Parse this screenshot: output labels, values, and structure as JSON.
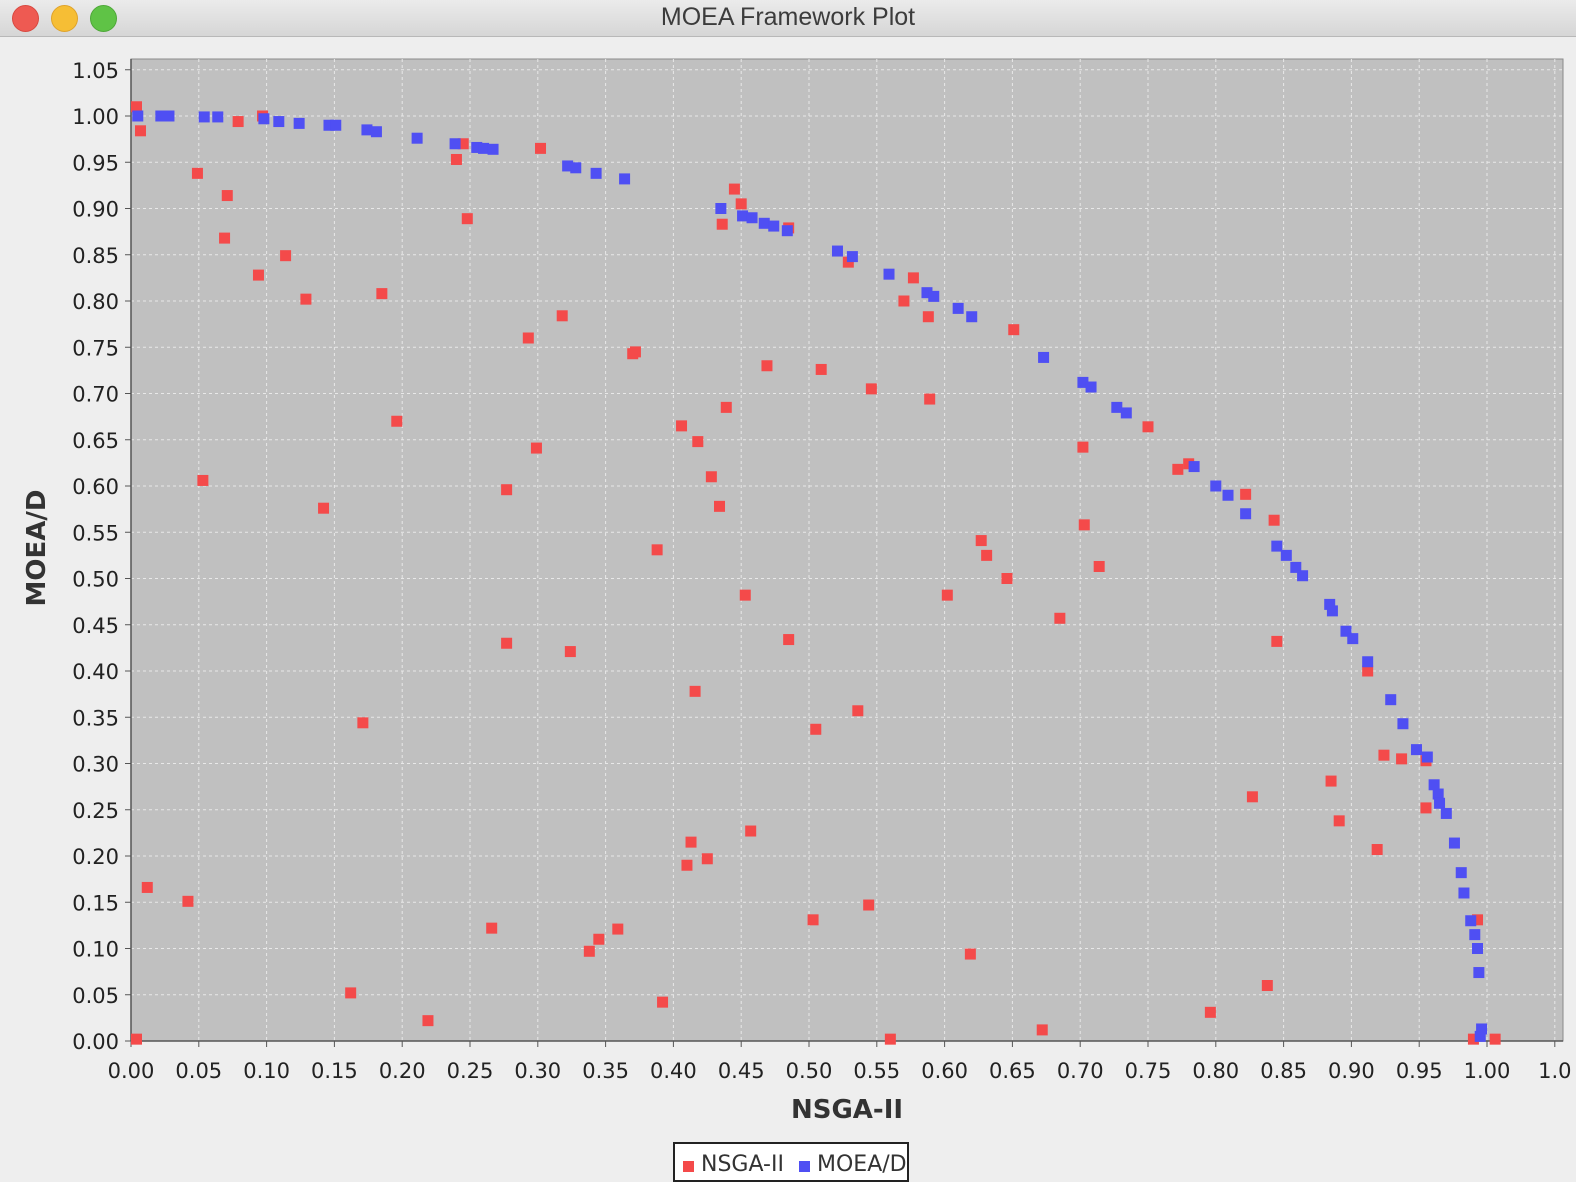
{
  "window": {
    "title": "MOEA Framework Plot"
  },
  "colors": {
    "nsga": "#f44a4a",
    "moead": "#4f4ff3",
    "plot_bg": "#c0c0c0",
    "grid": "#e8e8e8"
  },
  "legend": {
    "items": [
      {
        "label": "NSGA-II"
      },
      {
        "label": "MOEA/D"
      }
    ]
  },
  "chart_data": {
    "type": "scatter",
    "xlabel": "NSGA-II",
    "ylabel": "MOEA/D",
    "xlim": [
      0,
      1.0
    ],
    "ylim": [
      0,
      1.05
    ],
    "grid": true,
    "legend_position": "bottom",
    "xticks": [
      "0.00",
      "0.05",
      "0.10",
      "0.15",
      "0.20",
      "0.25",
      "0.30",
      "0.35",
      "0.40",
      "0.45",
      "0.50",
      "0.55",
      "0.60",
      "0.65",
      "0.70",
      "0.75",
      "0.80",
      "0.85",
      "0.90",
      "0.95",
      "1.00",
      "1.0"
    ],
    "yticks": [
      "0.00",
      "0.05",
      "0.10",
      "0.15",
      "0.20",
      "0.25",
      "0.30",
      "0.35",
      "0.40",
      "0.45",
      "0.50",
      "0.55",
      "0.60",
      "0.65",
      "0.70",
      "0.75",
      "0.80",
      "0.85",
      "0.90",
      "0.95",
      "1.00",
      "1.05"
    ],
    "series": [
      {
        "name": "NSGA-II",
        "points": [
          [
            0.0,
            1.01
          ],
          [
            0.007,
            0.984
          ],
          [
            0.049,
            0.938
          ],
          [
            0.071,
            0.914
          ],
          [
            0.069,
            0.868
          ],
          [
            0.079,
            0.994
          ],
          [
            0.094,
            0.828
          ],
          [
            0.097,
            1.0
          ],
          [
            0.114,
            0.849
          ],
          [
            0.129,
            0.802
          ],
          [
            0.185,
            0.808
          ],
          [
            0.196,
            0.67
          ],
          [
            0.24,
            0.953
          ],
          [
            0.245,
            0.97
          ],
          [
            0.248,
            0.889
          ],
          [
            0.053,
            0.606
          ],
          [
            0.142,
            0.576
          ],
          [
            0.293,
            0.76
          ],
          [
            0.299,
            0.641
          ],
          [
            0.302,
            0.965
          ],
          [
            0.318,
            0.784
          ],
          [
            0.277,
            0.596
          ],
          [
            0.277,
            0.43
          ],
          [
            0.324,
            0.421
          ],
          [
            0.37,
            0.743
          ],
          [
            0.372,
            0.745
          ],
          [
            0.388,
            0.531
          ],
          [
            0.406,
            0.665
          ],
          [
            0.418,
            0.648
          ],
          [
            0.439,
            0.685
          ],
          [
            0.428,
            0.61
          ],
          [
            0.434,
            0.578
          ],
          [
            0.416,
            0.378
          ],
          [
            0.436,
            0.883
          ],
          [
            0.445,
            0.921
          ],
          [
            0.45,
            0.905
          ],
          [
            0.453,
            0.482
          ],
          [
            0.469,
            0.73
          ],
          [
            0.485,
            0.879
          ],
          [
            0.485,
            0.434
          ],
          [
            0.509,
            0.726
          ],
          [
            0.529,
            0.842
          ],
          [
            0.546,
            0.705
          ],
          [
            0.536,
            0.357
          ],
          [
            0.505,
            0.337
          ],
          [
            0.57,
            0.8
          ],
          [
            0.577,
            0.825
          ],
          [
            0.588,
            0.783
          ],
          [
            0.589,
            0.694
          ],
          [
            0.602,
            0.482
          ],
          [
            0.651,
            0.769
          ],
          [
            0.627,
            0.541
          ],
          [
            0.631,
            0.525
          ],
          [
            0.646,
            0.5
          ],
          [
            0.685,
            0.457
          ],
          [
            0.702,
            0.642
          ],
          [
            0.703,
            0.558
          ],
          [
            0.714,
            0.513
          ],
          [
            0.75,
            0.664
          ],
          [
            0.772,
            0.618
          ],
          [
            0.78,
            0.624
          ],
          [
            0.822,
            0.591
          ],
          [
            0.843,
            0.563
          ],
          [
            0.845,
            0.432
          ],
          [
            0.885,
            0.281
          ],
          [
            0.891,
            0.238
          ],
          [
            0.912,
            0.4
          ],
          [
            0.924,
            0.309
          ],
          [
            0.937,
            0.305
          ],
          [
            0.955,
            0.303
          ],
          [
            0.955,
            0.252
          ],
          [
            0.919,
            0.207
          ],
          [
            0.827,
            0.264
          ],
          [
            0.838,
            0.06
          ],
          [
            0.796,
            0.031
          ],
          [
            0.993,
            0.131
          ],
          [
            0.99,
            0.002
          ],
          [
            1.006,
            0.002
          ],
          [
            0.012,
            0.166
          ],
          [
            0.042,
            0.151
          ],
          [
            0.162,
            0.052
          ],
          [
            0.171,
            0.344
          ],
          [
            0.219,
            0.022
          ],
          [
            0.266,
            0.122
          ],
          [
            0.338,
            0.097
          ],
          [
            0.345,
            0.11
          ],
          [
            0.359,
            0.121
          ],
          [
            0.392,
            0.042
          ],
          [
            0.41,
            0.19
          ],
          [
            0.413,
            0.215
          ],
          [
            0.425,
            0.197
          ],
          [
            0.457,
            0.227
          ],
          [
            0.503,
            0.131
          ],
          [
            0.544,
            0.147
          ],
          [
            0.56,
            0.002
          ],
          [
            0.619,
            0.094
          ],
          [
            0.672,
            0.012
          ],
          [
            0.001,
            0.002
          ]
        ]
      },
      {
        "name": "MOEA/D",
        "points": [
          [
            0.005,
            1.0
          ],
          [
            0.022,
            1.0
          ],
          [
            0.028,
            1.0
          ],
          [
            0.054,
            0.999
          ],
          [
            0.064,
            0.999
          ],
          [
            0.098,
            0.997
          ],
          [
            0.109,
            0.994
          ],
          [
            0.124,
            0.992
          ],
          [
            0.146,
            0.99
          ],
          [
            0.151,
            0.99
          ],
          [
            0.174,
            0.985
          ],
          [
            0.181,
            0.983
          ],
          [
            0.211,
            0.976
          ],
          [
            0.239,
            0.97
          ],
          [
            0.255,
            0.966
          ],
          [
            0.26,
            0.965
          ],
          [
            0.267,
            0.964
          ],
          [
            0.322,
            0.946
          ],
          [
            0.328,
            0.944
          ],
          [
            0.343,
            0.938
          ],
          [
            0.364,
            0.932
          ],
          [
            0.435,
            0.9
          ],
          [
            0.451,
            0.892
          ],
          [
            0.458,
            0.89
          ],
          [
            0.467,
            0.884
          ],
          [
            0.474,
            0.881
          ],
          [
            0.484,
            0.876
          ],
          [
            0.521,
            0.854
          ],
          [
            0.532,
            0.848
          ],
          [
            0.559,
            0.829
          ],
          [
            0.587,
            0.809
          ],
          [
            0.592,
            0.805
          ],
          [
            0.61,
            0.792
          ],
          [
            0.62,
            0.783
          ],
          [
            0.673,
            0.739
          ],
          [
            0.702,
            0.712
          ],
          [
            0.708,
            0.707
          ],
          [
            0.727,
            0.685
          ],
          [
            0.734,
            0.679
          ],
          [
            0.784,
            0.621
          ],
          [
            0.8,
            0.6
          ],
          [
            0.809,
            0.59
          ],
          [
            0.822,
            0.57
          ],
          [
            0.845,
            0.535
          ],
          [
            0.852,
            0.525
          ],
          [
            0.859,
            0.512
          ],
          [
            0.864,
            0.503
          ],
          [
            0.884,
            0.472
          ],
          [
            0.886,
            0.465
          ],
          [
            0.896,
            0.443
          ],
          [
            0.901,
            0.435
          ],
          [
            0.912,
            0.41
          ],
          [
            0.929,
            0.369
          ],
          [
            0.938,
            0.343
          ],
          [
            0.948,
            0.315
          ],
          [
            0.956,
            0.307
          ],
          [
            0.961,
            0.277
          ],
          [
            0.964,
            0.267
          ],
          [
            0.965,
            0.257
          ],
          [
            0.97,
            0.246
          ],
          [
            0.976,
            0.214
          ],
          [
            0.981,
            0.182
          ],
          [
            0.983,
            0.16
          ],
          [
            0.988,
            0.13
          ],
          [
            0.991,
            0.115
          ],
          [
            0.993,
            0.1
          ],
          [
            0.994,
            0.074
          ],
          [
            0.996,
            0.013
          ],
          [
            0.995,
            0.005
          ]
        ]
      }
    ]
  }
}
